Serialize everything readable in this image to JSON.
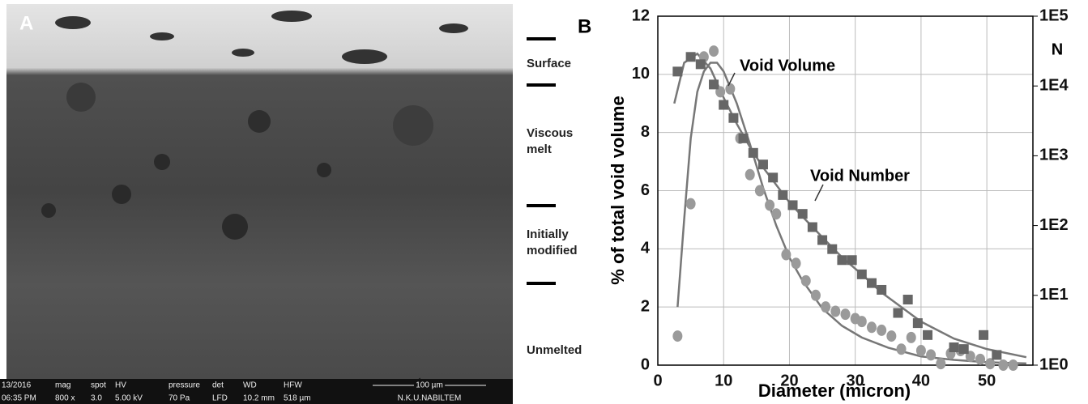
{
  "micrograph": {
    "panel_label": "A",
    "zones": [
      [
        "Surface"
      ],
      [
        "Viscous",
        "melt"
      ],
      [
        "Initially",
        "modified"
      ],
      [
        "Unmelted"
      ]
    ],
    "info_bar": {
      "date": "13/2016",
      "time": "06:35 PM",
      "fields": [
        {
          "name": "mag",
          "value": "800 x"
        },
        {
          "name": "spot",
          "value": "3.0"
        },
        {
          "name": "HV",
          "value": "5.00 kV"
        },
        {
          "name": "pressure",
          "value": "70 Pa"
        },
        {
          "name": "det",
          "value": "LFD"
        },
        {
          "name": "WD",
          "value": "10.2 mm"
        },
        {
          "name": "HFW",
          "value": "518 µm"
        }
      ],
      "scale_bar": "100 µm",
      "operator": "N.K.U.NABILTEM"
    }
  },
  "chart_data": {
    "type": "scatter",
    "panel_label": "B",
    "x_label": "Diameter (micron)",
    "y_label": "% of total void volume",
    "y2_label": "N",
    "xlim": [
      0,
      57
    ],
    "xticks": [
      0,
      10,
      20,
      30,
      40,
      50
    ],
    "ylim": [
      0,
      12
    ],
    "yticks": [
      0,
      2,
      4,
      6,
      8,
      10,
      12
    ],
    "y2lim": [
      1,
      100000
    ],
    "y2scale": "log",
    "y2ticks": [
      {
        "value": 1,
        "label": "1E0"
      },
      {
        "value": 10,
        "label": "1E1"
      },
      {
        "value": 100,
        "label": "1E2"
      },
      {
        "value": 1000,
        "label": "1E3"
      },
      {
        "value": 10000,
        "label": "1E4"
      },
      {
        "value": 100000,
        "label": "1E5"
      }
    ],
    "grid": true,
    "series": [
      {
        "name": "Void Volume",
        "color": "#9a9a9a",
        "marker": "circle",
        "axis": "y",
        "x": [
          3,
          5,
          7,
          8.5,
          9.5,
          11,
          12.5,
          14,
          15.5,
          17,
          18,
          19.5,
          21,
          22.5,
          24,
          25.5,
          27,
          28.5,
          30,
          31,
          32.5,
          34,
          35.5,
          37,
          38.5,
          40,
          41.5,
          43,
          44.5,
          46,
          47.5,
          49,
          50.5,
          52.5,
          54
        ],
        "values": [
          1.0,
          5.55,
          10.6,
          10.8,
          9.4,
          9.5,
          7.8,
          6.55,
          6.0,
          5.5,
          5.2,
          3.8,
          3.5,
          2.9,
          2.4,
          2.0,
          1.85,
          1.75,
          1.6,
          1.5,
          1.3,
          1.2,
          1.0,
          0.55,
          0.95,
          0.5,
          0.35,
          0.05,
          0.4,
          0.5,
          0.3,
          0.2,
          0.05,
          0,
          0
        ]
      },
      {
        "name": "Void Number",
        "color": "#666666",
        "marker": "square",
        "axis": "y2",
        "x": [
          3,
          5,
          6.5,
          8.5,
          10,
          11.5,
          13,
          14.5,
          16,
          17.5,
          19,
          20.5,
          22,
          23.5,
          25,
          26.5,
          28,
          29.5,
          31,
          32.5,
          34,
          36.5,
          38,
          39.5,
          41,
          45,
          46.5,
          49.5,
          51.5
        ],
        "values": [
          16100,
          26100,
          20500,
          10500,
          5360,
          3480,
          1780,
          1100,
          750,
          487,
          274,
          196,
          147,
          95,
          62,
          46,
          32,
          32,
          20,
          15,
          12,
          5.6,
          8.7,
          4.0,
          2.7,
          1.8,
          1.7,
          2.7,
          1.4
        ]
      }
    ],
    "fits": [
      {
        "color": "#777777",
        "axis": "y",
        "x": [
          3,
          4,
          5,
          6,
          7,
          8,
          9,
          10,
          12,
          14,
          16,
          18,
          20,
          22,
          25,
          28,
          31,
          35,
          40,
          45,
          50,
          56
        ],
        "values": [
          2,
          5,
          7.8,
          9.4,
          10.1,
          10.4,
          10.4,
          10.1,
          9,
          7.6,
          6.1,
          4.8,
          3.7,
          2.9,
          1.95,
          1.35,
          0.95,
          0.6,
          0.3,
          0.18,
          0.1,
          0.06
        ]
      },
      {
        "color": "#777777",
        "axis": "y2",
        "x": [
          2.5,
          4,
          6,
          8,
          10,
          12,
          14,
          16,
          18,
          20,
          22,
          25,
          28,
          31,
          34,
          37,
          40,
          45,
          50,
          56
        ],
        "values": [
          5620,
          21500,
          29000,
          17800,
          6810,
          2870,
          1330,
          680,
          383,
          215,
          134,
          68,
          35,
          20,
          11,
          6.8,
          4.2,
          2.4,
          1.7,
          1.3
        ]
      }
    ]
  }
}
